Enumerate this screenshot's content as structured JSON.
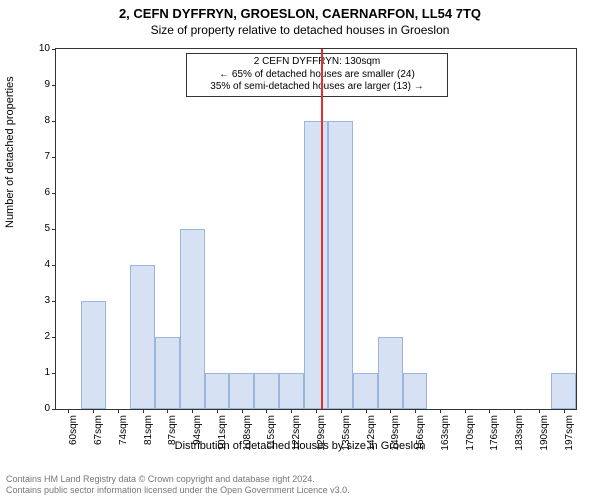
{
  "title": "2, CEFN DYFFRYN, GROESLON, CAERNARFON, LL54 7TQ",
  "subtitle": "Size of property relative to detached houses in Groeslon",
  "ylabel": "Number of detached properties",
  "xlabel": "Distribution of detached houses by size in Groeslon",
  "footer_line1": "Contains HM Land Registry data © Crown copyright and database right 2024.",
  "footer_line2": "Contains public sector information licensed under the Open Government Licence v3.0.",
  "chart": {
    "type": "bar",
    "ylim": [
      0,
      10
    ],
    "ytick_step": 1,
    "xlabels": [
      "60sqm",
      "67sqm",
      "74sqm",
      "81sqm",
      "87sqm",
      "94sqm",
      "101sqm",
      "108sqm",
      "115sqm",
      "122sqm",
      "129sqm",
      "135sqm",
      "142sqm",
      "149sqm",
      "156sqm",
      "163sqm",
      "170sqm",
      "176sqm",
      "183sqm",
      "190sqm",
      "197sqm"
    ],
    "values": [
      0,
      3,
      0,
      4,
      2,
      5,
      1,
      1,
      1,
      1,
      8,
      8,
      1,
      2,
      1,
      0,
      0,
      0,
      0,
      0,
      1
    ],
    "bar_color": "#d6e2f3",
    "bar_border": "#9bb7de",
    "bar_width_ratio": 1.0,
    "background_color": "#ffffff",
    "axis_color": "#333333",
    "marker": {
      "position_sqm": 130,
      "color": "#e03030"
    }
  },
  "annotation": {
    "line1": "2 CEFN DYFFRYN: 130sqm",
    "line2": "← 65% of detached houses are smaller (24)",
    "line3": "35% of semi-detached houses are larger (13) →"
  }
}
